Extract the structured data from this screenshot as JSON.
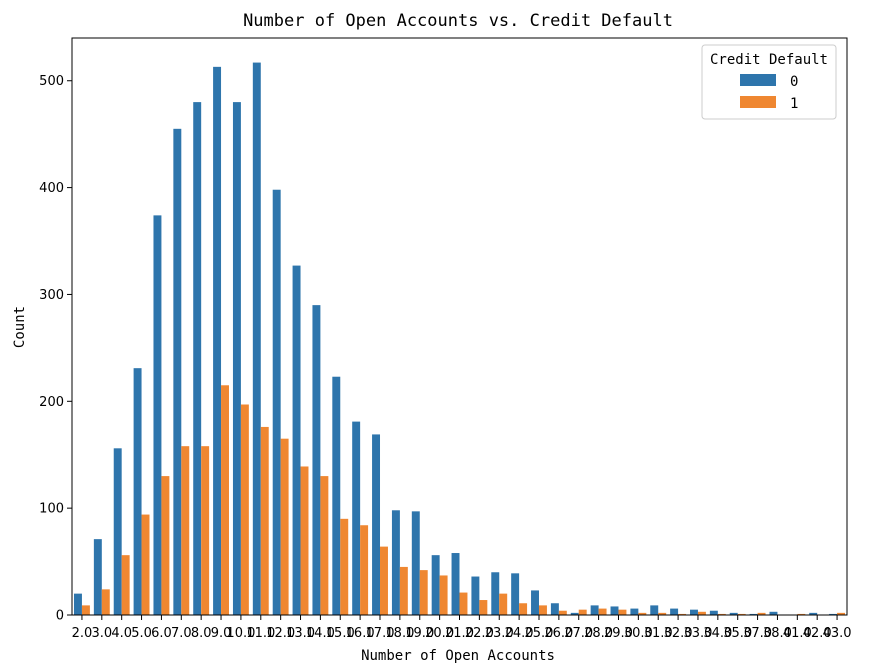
{
  "chart_data": {
    "type": "bar",
    "title": "Number of Open Accounts vs. Credit Default",
    "xlabel": "Number of Open Accounts",
    "ylabel": "Count",
    "ylim": [
      0,
      540
    ],
    "yticks": [
      "0",
      "100",
      "200",
      "300",
      "400",
      "500"
    ],
    "categories": [
      "2.0",
      "3.0",
      "4.0",
      "5.0",
      "6.0",
      "7.0",
      "8.0",
      "9.0",
      "10.0",
      "11.0",
      "12.0",
      "13.0",
      "14.0",
      "15.0",
      "16.0",
      "17.0",
      "18.0",
      "19.0",
      "20.0",
      "21.0",
      "22.0",
      "23.0",
      "24.0",
      "25.0",
      "26.0",
      "27.0",
      "28.0",
      "29.0",
      "30.0",
      "31.0",
      "32.0",
      "33.0",
      "34.0",
      "35.0",
      "37.0",
      "38.0",
      "41.0",
      "42.0",
      "43.0"
    ],
    "legend": {
      "title": "Credit Default",
      "position": "top-right"
    },
    "series": [
      {
        "name": "0",
        "color": "#2e75ac",
        "values": [
          20,
          71,
          156,
          231,
          374,
          455,
          480,
          513,
          480,
          517,
          398,
          327,
          290,
          223,
          181,
          169,
          98,
          97,
          56,
          58,
          36,
          40,
          39,
          23,
          11,
          2,
          9,
          8,
          6,
          9,
          6,
          5,
          4,
          2,
          1,
          3,
          0,
          2,
          1
        ]
      },
      {
        "name": "1",
        "color": "#ef8731",
        "values": [
          9,
          24,
          56,
          94,
          130,
          158,
          158,
          215,
          197,
          176,
          165,
          139,
          130,
          90,
          84,
          64,
          45,
          42,
          37,
          21,
          14,
          20,
          11,
          9,
          4,
          5,
          6,
          5,
          2,
          2,
          1,
          3,
          1,
          1,
          2,
          0,
          1,
          0,
          2
        ]
      }
    ]
  }
}
